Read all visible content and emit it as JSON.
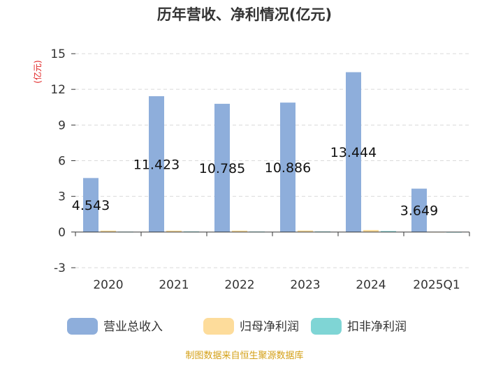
{
  "chart_data": {
    "type": "bar",
    "title": "历年营收、净利情况(亿元)",
    "ylabel": "(亿元)",
    "xlabel": "",
    "categories": [
      "2020",
      "2021",
      "2022",
      "2023",
      "2024",
      "2025Q1"
    ],
    "series": [
      {
        "name": "营业总收入",
        "color": "#8eaedb",
        "values": [
          4.543,
          11.423,
          10.785,
          10.886,
          13.444,
          3.649
        ]
      },
      {
        "name": "归母净利润",
        "color": "#fddc9b",
        "values": [
          0.12,
          0.12,
          0.12,
          0.13,
          0.17,
          0.02
        ]
      },
      {
        "name": "扣非净利润",
        "color": "#7fd5d5",
        "values": [
          0.03,
          0.05,
          0.04,
          0.05,
          0.08,
          0.01
        ]
      }
    ],
    "data_labels": [
      "4.543",
      "11.423",
      "10.785",
      "10.886",
      "13.444",
      "3.649"
    ],
    "ylim": [
      -3,
      15
    ],
    "yticks": [
      "-3",
      "0",
      "3",
      "6",
      "9",
      "12",
      "15"
    ],
    "grid": true,
    "legend_position": "bottom",
    "source": "制图数据来自恒生聚源数据库"
  }
}
